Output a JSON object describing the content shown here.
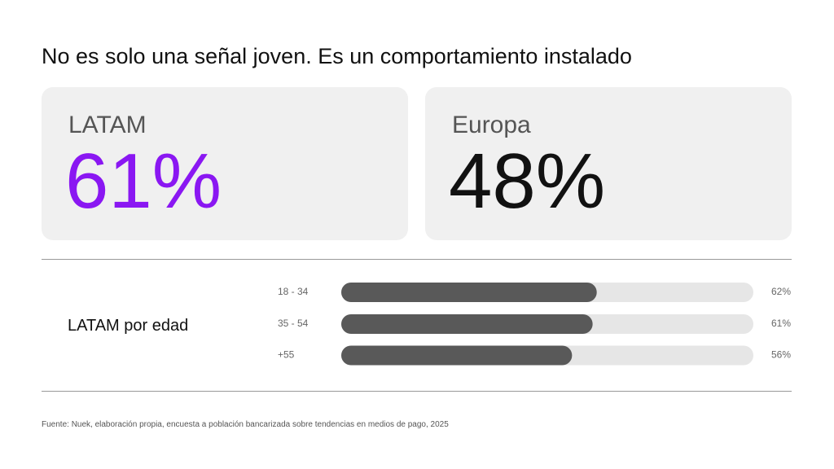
{
  "title": "No es solo una señal joven. Es un comportamiento instalado",
  "cards": [
    {
      "label": "LATAM",
      "value": "61%",
      "color": "#8a17f2"
    },
    {
      "label": "Europa",
      "value": "48%",
      "color": "#111111"
    }
  ],
  "chart_data": {
    "type": "bar",
    "orientation": "horizontal",
    "title": "LATAM por edad",
    "categories": [
      "18 - 34",
      "35 - 54",
      "+55"
    ],
    "values": [
      62,
      61,
      56
    ],
    "value_labels": [
      "62%",
      "61%",
      "56%"
    ],
    "color": "#595959",
    "track_color": "#e6e6e6",
    "xlim": [
      0,
      100
    ]
  },
  "source": "Fuente: Nuek, elaboración propia, encuesta a población bancarizada sobre tendencias en medios de pago, 2025"
}
